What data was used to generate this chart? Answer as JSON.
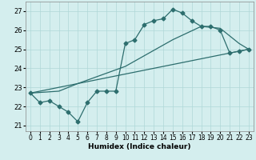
{
  "xlabel": "Humidex (Indice chaleur)",
  "xlim": [
    -0.5,
    23.5
  ],
  "ylim": [
    20.7,
    27.5
  ],
  "yticks": [
    21,
    22,
    23,
    24,
    25,
    26,
    27
  ],
  "xticks": [
    0,
    1,
    2,
    3,
    4,
    5,
    6,
    7,
    8,
    9,
    10,
    11,
    12,
    13,
    14,
    15,
    16,
    17,
    18,
    19,
    20,
    21,
    22,
    23
  ],
  "line1_x": [
    0,
    1,
    2,
    3,
    4,
    5,
    6,
    7,
    8,
    9,
    10,
    11,
    12,
    13,
    14,
    15,
    16,
    17,
    18,
    19,
    20,
    21,
    22,
    23
  ],
  "line1_y": [
    22.7,
    22.2,
    22.3,
    22.0,
    21.7,
    21.2,
    22.2,
    22.8,
    22.8,
    22.8,
    25.3,
    25.5,
    26.3,
    26.5,
    26.6,
    27.1,
    26.9,
    26.5,
    26.2,
    26.2,
    26.0,
    24.8,
    24.9,
    25.0
  ],
  "line2_x": [
    0,
    3,
    5,
    10,
    15,
    18,
    20,
    21,
    22,
    23
  ],
  "line2_y": [
    22.7,
    22.8,
    23.2,
    24.1,
    25.5,
    26.2,
    26.1,
    25.7,
    25.3,
    25.0
  ],
  "line3_x": [
    0,
    23
  ],
  "line3_y": [
    22.7,
    25.0
  ],
  "line_color": "#2d6e6e",
  "bg_color": "#d4eeee",
  "grid_color": "#afd8d8",
  "marker": "D",
  "marker_size": 2.5,
  "linewidth": 0.9
}
